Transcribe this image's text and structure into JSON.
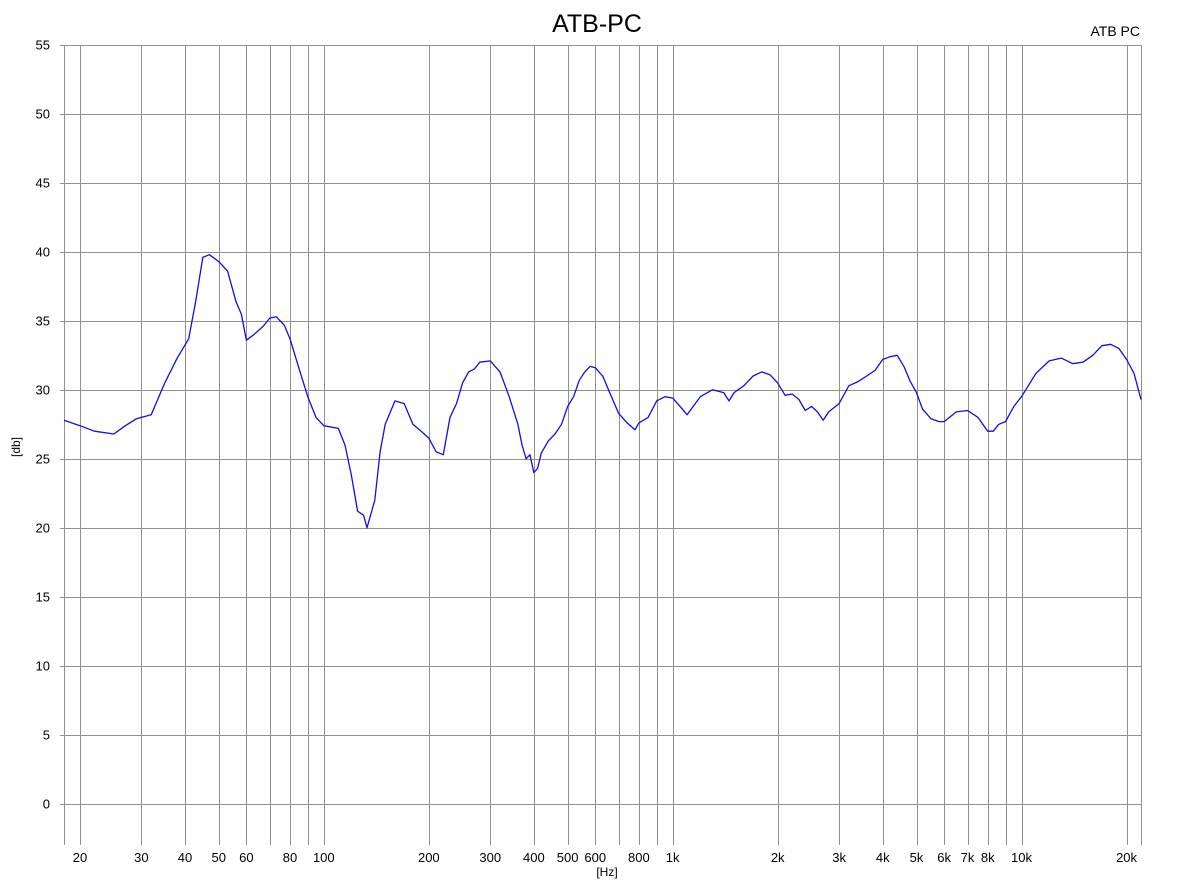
{
  "chart_data": {
    "type": "line",
    "title": "ATB-PC",
    "legend": {
      "entries": [
        "ATB PC"
      ],
      "placement": "top-right"
    },
    "xlabel": "[Hz]",
    "ylabel": "[db]",
    "x_scale": "log",
    "xlim": [
      18,
      22000
    ],
    "ylim": [
      -3,
      55
    ],
    "grid": true,
    "y_ticks": [
      0,
      5,
      10,
      15,
      20,
      25,
      30,
      35,
      40,
      45,
      50,
      55
    ],
    "x_ticks": [
      {
        "value": 20,
        "label": "20"
      },
      {
        "value": 30,
        "label": "30"
      },
      {
        "value": 40,
        "label": "40"
      },
      {
        "value": 50,
        "label": "50"
      },
      {
        "value": 60,
        "label": "60"
      },
      {
        "value": 80,
        "label": "80"
      },
      {
        "value": 100,
        "label": "100"
      },
      {
        "value": 200,
        "label": "200"
      },
      {
        "value": 300,
        "label": "300"
      },
      {
        "value": 400,
        "label": "400"
      },
      {
        "value": 500,
        "label": "500"
      },
      {
        "value": 600,
        "label": "600"
      },
      {
        "value": 800,
        "label": "800"
      },
      {
        "value": 1000,
        "label": "1k"
      },
      {
        "value": 2000,
        "label": "2k"
      },
      {
        "value": 3000,
        "label": "3k"
      },
      {
        "value": 4000,
        "label": "4k"
      },
      {
        "value": 5000,
        "label": "5k"
      },
      {
        "value": 6000,
        "label": "6k"
      },
      {
        "value": 7000,
        "label": "7k"
      },
      {
        "value": 8000,
        "label": "8k"
      },
      {
        "value": 10000,
        "label": "10k"
      },
      {
        "value": 20000,
        "label": "20k"
      }
    ],
    "x_grid": [
      20,
      30,
      40,
      50,
      60,
      70,
      80,
      90,
      100,
      200,
      300,
      400,
      500,
      600,
      700,
      800,
      900,
      1000,
      2000,
      3000,
      4000,
      5000,
      6000,
      7000,
      8000,
      9000,
      10000,
      20000
    ],
    "series": [
      {
        "name": "ATB PC",
        "color": "#1010e0",
        "points": [
          [
            18,
            27.8
          ],
          [
            20,
            27.4
          ],
          [
            22,
            27.0
          ],
          [
            25,
            26.8
          ],
          [
            27,
            27.4
          ],
          [
            29,
            27.9
          ],
          [
            32,
            28.2
          ],
          [
            35,
            30.5
          ],
          [
            38,
            32.3
          ],
          [
            41,
            33.7
          ],
          [
            43,
            36.5
          ],
          [
            45,
            39.6
          ],
          [
            47,
            39.8
          ],
          [
            50,
            39.3
          ],
          [
            53,
            38.6
          ],
          [
            56,
            36.4
          ],
          [
            58,
            35.5
          ],
          [
            60,
            33.6
          ],
          [
            63,
            34.0
          ],
          [
            67,
            34.6
          ],
          [
            70,
            35.2
          ],
          [
            73,
            35.3
          ],
          [
            77,
            34.7
          ],
          [
            80,
            33.7
          ],
          [
            85,
            31.5
          ],
          [
            90,
            29.5
          ],
          [
            95,
            28.0
          ],
          [
            100,
            27.4
          ],
          [
            110,
            27.2
          ],
          [
            115,
            26.0
          ],
          [
            120,
            23.8
          ],
          [
            125,
            21.2
          ],
          [
            130,
            20.9
          ],
          [
            133,
            20.0
          ],
          [
            140,
            22.0
          ],
          [
            145,
            25.5
          ],
          [
            150,
            27.5
          ],
          [
            160,
            29.2
          ],
          [
            170,
            29.0
          ],
          [
            180,
            27.5
          ],
          [
            190,
            27.0
          ],
          [
            200,
            26.5
          ],
          [
            210,
            25.5
          ],
          [
            220,
            25.3
          ],
          [
            230,
            28.0
          ],
          [
            240,
            29.0
          ],
          [
            250,
            30.5
          ],
          [
            260,
            31.3
          ],
          [
            270,
            31.5
          ],
          [
            280,
            32.0
          ],
          [
            300,
            32.1
          ],
          [
            320,
            31.3
          ],
          [
            340,
            29.5
          ],
          [
            360,
            27.5
          ],
          [
            370,
            26.0
          ],
          [
            380,
            25.0
          ],
          [
            390,
            25.3
          ],
          [
            400,
            24.0
          ],
          [
            410,
            24.3
          ],
          [
            420,
            25.4
          ],
          [
            440,
            26.3
          ],
          [
            460,
            26.8
          ],
          [
            480,
            27.5
          ],
          [
            500,
            28.8
          ],
          [
            520,
            29.5
          ],
          [
            540,
            30.7
          ],
          [
            560,
            31.3
          ],
          [
            580,
            31.7
          ],
          [
            600,
            31.6
          ],
          [
            630,
            31.0
          ],
          [
            660,
            29.8
          ],
          [
            700,
            28.3
          ],
          [
            740,
            27.6
          ],
          [
            780,
            27.1
          ],
          [
            800,
            27.6
          ],
          [
            850,
            28.0
          ],
          [
            900,
            29.2
          ],
          [
            950,
            29.5
          ],
          [
            1000,
            29.4
          ],
          [
            1050,
            28.8
          ],
          [
            1100,
            28.2
          ],
          [
            1200,
            29.5
          ],
          [
            1300,
            30.0
          ],
          [
            1400,
            29.8
          ],
          [
            1450,
            29.2
          ],
          [
            1500,
            29.8
          ],
          [
            1600,
            30.3
          ],
          [
            1700,
            31.0
          ],
          [
            1800,
            31.3
          ],
          [
            1900,
            31.1
          ],
          [
            2000,
            30.5
          ],
          [
            2100,
            29.6
          ],
          [
            2200,
            29.7
          ],
          [
            2300,
            29.3
          ],
          [
            2400,
            28.5
          ],
          [
            2500,
            28.8
          ],
          [
            2600,
            28.4
          ],
          [
            2700,
            27.8
          ],
          [
            2800,
            28.4
          ],
          [
            3000,
            29.0
          ],
          [
            3200,
            30.3
          ],
          [
            3400,
            30.6
          ],
          [
            3600,
            31.0
          ],
          [
            3800,
            31.4
          ],
          [
            4000,
            32.2
          ],
          [
            4200,
            32.4
          ],
          [
            4400,
            32.5
          ],
          [
            4600,
            31.7
          ],
          [
            4800,
            30.6
          ],
          [
            5000,
            29.8
          ],
          [
            5200,
            28.6
          ],
          [
            5500,
            27.9
          ],
          [
            5800,
            27.7
          ],
          [
            6000,
            27.7
          ],
          [
            6500,
            28.4
          ],
          [
            7000,
            28.5
          ],
          [
            7500,
            28.0
          ],
          [
            8000,
            27.0
          ],
          [
            8300,
            27.0
          ],
          [
            8600,
            27.5
          ],
          [
            9000,
            27.7
          ],
          [
            9500,
            28.8
          ],
          [
            10000,
            29.5
          ],
          [
            11000,
            31.2
          ],
          [
            12000,
            32.1
          ],
          [
            13000,
            32.3
          ],
          [
            14000,
            31.9
          ],
          [
            15000,
            32.0
          ],
          [
            16000,
            32.5
          ],
          [
            17000,
            33.2
          ],
          [
            18000,
            33.3
          ],
          [
            19000,
            33.0
          ],
          [
            20000,
            32.2
          ],
          [
            21000,
            31.2
          ],
          [
            22000,
            29.3
          ]
        ]
      }
    ]
  }
}
